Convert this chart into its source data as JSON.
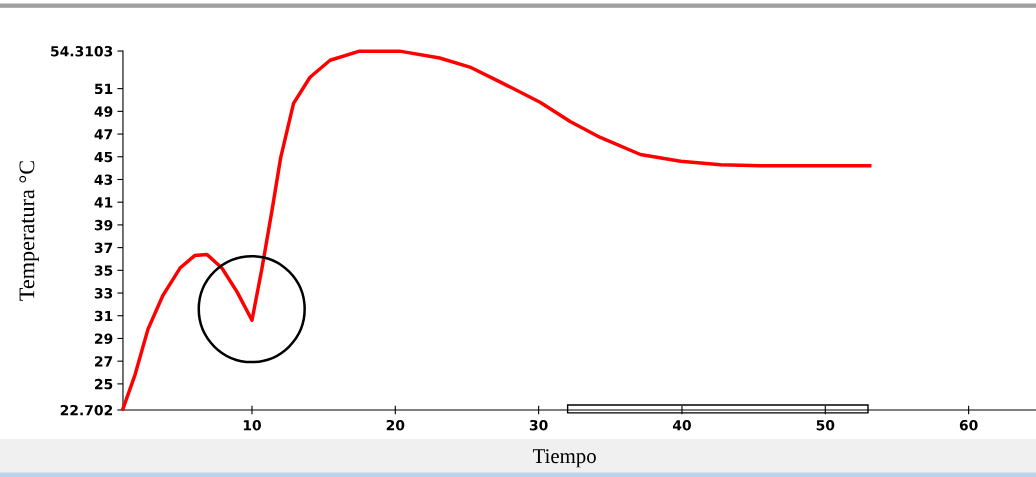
{
  "chart_data": {
    "type": "line",
    "xlabel": "Tiempo",
    "ylabel": "Temperatura °C",
    "x": [
      1,
      1.84,
      2.74,
      3.79,
      4.98,
      6.0,
      6.86,
      7.9,
      8.96,
      10.0,
      10.7,
      11.4,
      12.0,
      12.9,
      14.05,
      15.45,
      17.5,
      20.3,
      23.1,
      25.2,
      27.3,
      30.1,
      32.2,
      34.3,
      37.1,
      39.9,
      42.7,
      45.5,
      53.1
    ],
    "series": [
      {
        "color": "#ff0000",
        "values": [
          22.8,
          25.8,
          29.8,
          32.8,
          35.2,
          36.3,
          36.4,
          35.2,
          33.1,
          30.6,
          35.2,
          40.3,
          44.9,
          49.7,
          52.0,
          53.5,
          54.3,
          54.3,
          53.7,
          52.9,
          51.6,
          49.8,
          48.1,
          46.7,
          45.2,
          44.6,
          44.3,
          44.2,
          44.2
        ]
      }
    ],
    "xlim": [
      1,
      64.7
    ],
    "xticks": [
      10,
      20,
      30,
      40,
      50,
      60
    ],
    "ylim": [
      22.702,
      54.3103
    ],
    "yticks": [
      22.702,
      25,
      27,
      29,
      31,
      33,
      35,
      37,
      39,
      41,
      43,
      45,
      47,
      49,
      51,
      54.3103
    ],
    "marker": "none",
    "line_style": "solid"
  }
}
